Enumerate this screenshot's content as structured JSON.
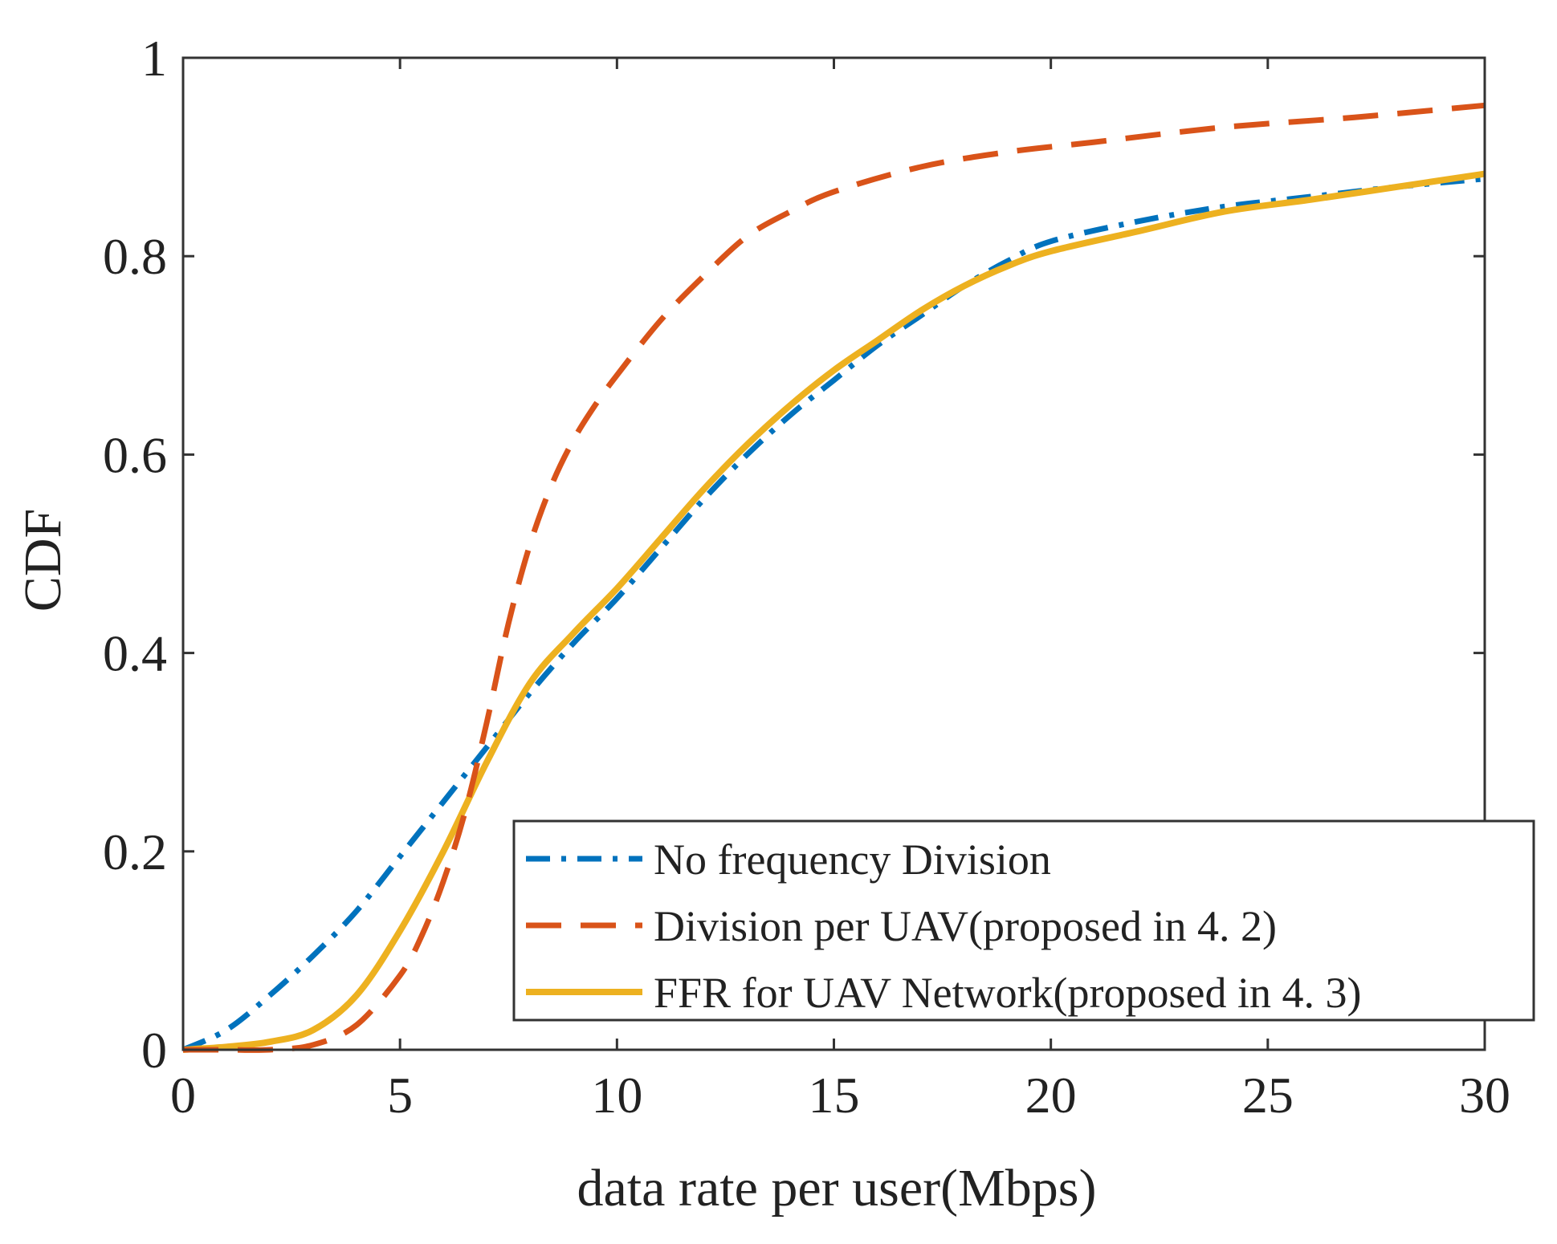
{
  "chart_data": {
    "type": "line",
    "title": "",
    "xlabel": "data rate per user(Mbps)",
    "ylabel": "CDF",
    "xlim": [
      0,
      30
    ],
    "ylim": [
      0,
      1
    ],
    "xticks": [
      0,
      5,
      10,
      15,
      20,
      25,
      30
    ],
    "xtick_labels": [
      "0",
      "5",
      "10",
      "15",
      "20",
      "25",
      "30"
    ],
    "yticks": [
      0,
      0.2,
      0.4,
      0.6,
      0.8,
      1
    ],
    "ytick_labels": [
      "0",
      "0.2",
      "0.4",
      "0.6",
      "0.8",
      "1"
    ],
    "grid": false,
    "legend_position": "bottom-right",
    "series": [
      {
        "name": "No frequency Division",
        "color": "#0072BD",
        "style": "dashdot",
        "x": [
          0,
          1,
          2,
          3,
          4,
          5,
          6,
          7,
          8,
          9,
          10,
          11,
          12,
          13,
          14,
          15,
          16,
          17,
          18,
          19,
          20,
          22,
          24,
          26,
          28,
          30
        ],
        "y": [
          0,
          0.02,
          0.055,
          0.095,
          0.14,
          0.195,
          0.25,
          0.305,
          0.36,
          0.41,
          0.455,
          0.505,
          0.555,
          0.6,
          0.64,
          0.675,
          0.71,
          0.74,
          0.77,
          0.795,
          0.815,
          0.835,
          0.85,
          0.86,
          0.87,
          0.878
        ]
      },
      {
        "name": "Division per UAV(proposed in 4. 2)",
        "color": "#D95319",
        "style": "dashed",
        "x": [
          0,
          1,
          2,
          3,
          4,
          5,
          5.5,
          6,
          6.5,
          7,
          7.5,
          8,
          8.5,
          9,
          9.5,
          10,
          11,
          12,
          13,
          14,
          15,
          17,
          19,
          21,
          24,
          27,
          30
        ],
        "y": [
          0,
          0,
          0,
          0.005,
          0.025,
          0.075,
          0.115,
          0.17,
          0.24,
          0.33,
          0.43,
          0.51,
          0.57,
          0.615,
          0.65,
          0.68,
          0.735,
          0.78,
          0.82,
          0.845,
          0.865,
          0.89,
          0.905,
          0.915,
          0.93,
          0.94,
          0.952
        ]
      },
      {
        "name": "FFR for UAV Network(proposed in 4. 3)",
        "color": "#EDB120",
        "style": "solid",
        "x": [
          0,
          1,
          2,
          3,
          4,
          5,
          6,
          7,
          8,
          9,
          10,
          11,
          12,
          13,
          14,
          15,
          16,
          17,
          18,
          19,
          20,
          22,
          24,
          26,
          28,
          30
        ],
        "y": [
          0,
          0.003,
          0.008,
          0.02,
          0.055,
          0.12,
          0.2,
          0.29,
          0.37,
          0.42,
          0.465,
          0.515,
          0.565,
          0.61,
          0.65,
          0.685,
          0.715,
          0.745,
          0.77,
          0.79,
          0.805,
          0.825,
          0.845,
          0.857,
          0.87,
          0.883
        ]
      }
    ]
  }
}
